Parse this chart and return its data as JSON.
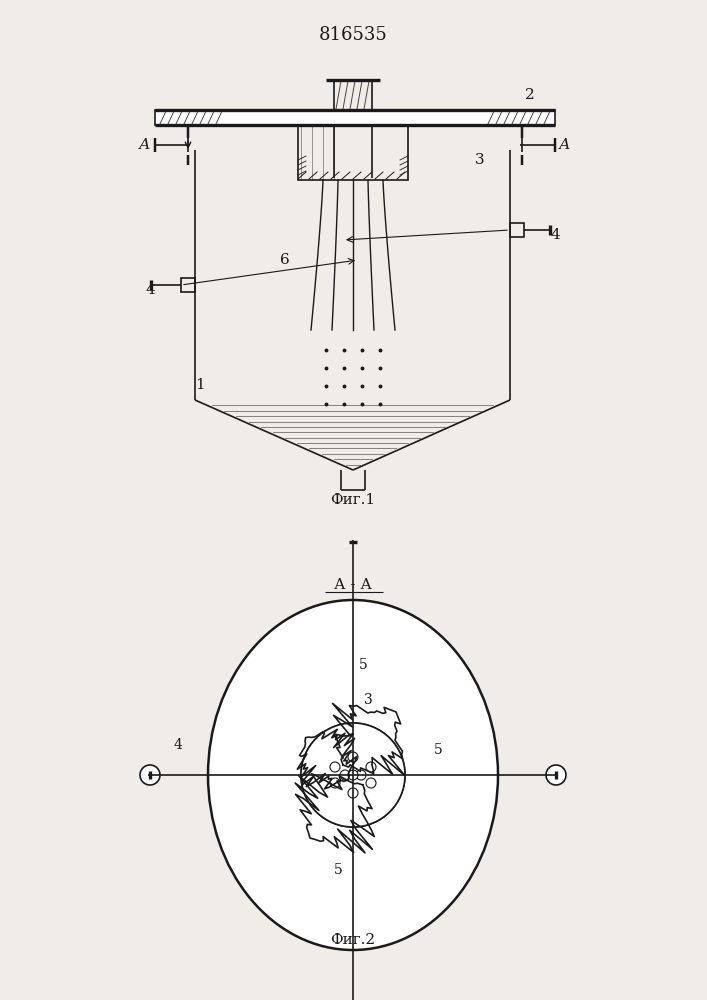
{
  "title": "816535",
  "fig1_label": "Фиг.1",
  "fig2_label": "Фиг.2",
  "section_label": "А - А",
  "bg_color": "#f0ede8",
  "line_color": "#1a1a1a",
  "hatch_color": "#1a1a1a",
  "label_A_left": "А",
  "label_A_right": "А",
  "label_1": "1",
  "label_2": "2",
  "label_3": "3",
  "label_4": "4",
  "label_5": "5",
  "label_6": "6"
}
